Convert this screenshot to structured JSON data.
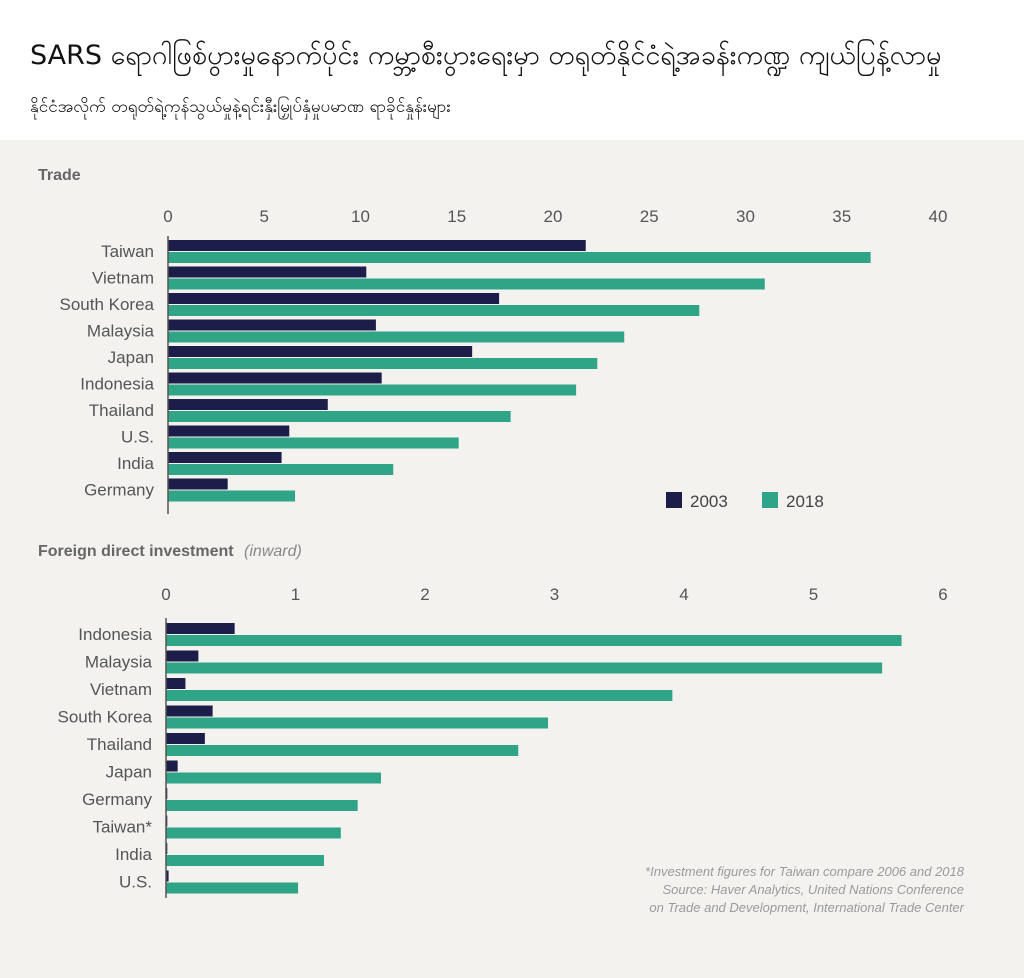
{
  "header": {
    "title": "SARS ရောဂါဖြစ်ပွားမှုနောက်ပိုင်း ကမ္ဘာ့စီးပွားရေးမှာ တရုတ်နိုင်ငံရဲ့အခန်းကဏ္ဍ ကျယ်ပြန့်လာမှု",
    "subtitle": "နိုင်ငံအလိုက် တရုတ်ရဲ့ကုန်သွယ်မှုနဲ့ရင်းနှီးမြှုပ်နှံမှုပမာဏ ရာခိုင်နှုန်းများ"
  },
  "colors": {
    "s2003": "#1c1d48",
    "s2018": "#2fa486"
  },
  "notes": {
    "line1": "*Investment figures for Taiwan compare 2006 and 2018",
    "line2": "Source: Haver Analytics, United Nations Conference",
    "line3": "on Trade and Development, International Trade Center"
  },
  "chart_data": [
    {
      "type": "bar",
      "orientation": "horizontal",
      "title": "Trade",
      "subtitle": "",
      "xlim": [
        0,
        40
      ],
      "ticks": [
        0,
        5,
        10,
        15,
        20,
        25,
        30,
        35,
        40
      ],
      "categories": [
        "Taiwan",
        "Vietnam",
        "South Korea",
        "Malaysia",
        "Japan",
        "Indonesia",
        "Thailand",
        "U.S.",
        "India",
        "Germany"
      ],
      "series": [
        {
          "name": "2003",
          "values": [
            21.7,
            10.3,
            17.2,
            10.8,
            15.8,
            11.1,
            8.3,
            6.3,
            5.9,
            3.1
          ]
        },
        {
          "name": "2018",
          "values": [
            36.5,
            31.0,
            27.6,
            23.7,
            22.3,
            21.2,
            17.8,
            15.1,
            11.7,
            6.6
          ]
        }
      ],
      "legend": "bottom-right"
    },
    {
      "type": "bar",
      "orientation": "horizontal",
      "title": "Foreign direct investment",
      "subtitle": "(inward)",
      "xlim": [
        0,
        6
      ],
      "ticks": [
        0,
        1,
        2,
        3,
        4,
        5,
        6
      ],
      "categories": [
        "Indonesia",
        "Malaysia",
        "Vietnam",
        "South Korea",
        "Thailand",
        "Japan",
        "Germany",
        "Taiwan*",
        "India",
        "U.S."
      ],
      "series": [
        {
          "name": "2003",
          "values": [
            0.53,
            0.25,
            0.15,
            0.36,
            0.3,
            0.09,
            0.01,
            0.01,
            0.01,
            0.02
          ]
        },
        {
          "name": "2018",
          "values": [
            5.68,
            5.53,
            3.91,
            2.95,
            2.72,
            1.66,
            1.48,
            1.35,
            1.22,
            1.02
          ]
        }
      ]
    }
  ]
}
